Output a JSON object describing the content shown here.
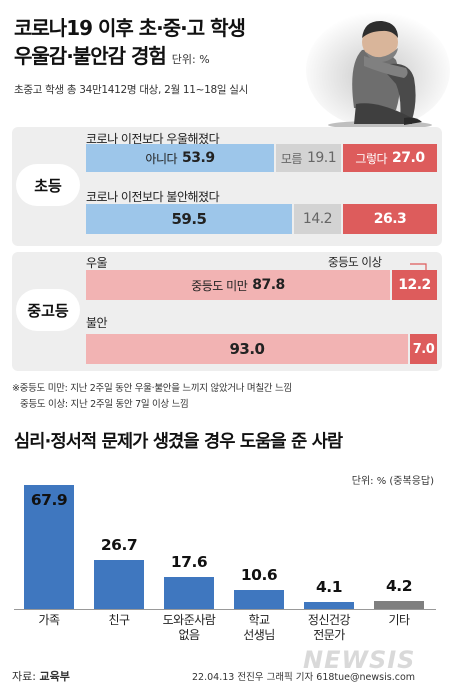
{
  "header": {
    "title_line1": "코로나19 이후 초·중·고 학생",
    "title_line2": "우울감·불안감 경험",
    "unit": "단위: %",
    "subline": "초중고 학생 총 34만1412명 대상, 2월 11~18일 실시"
  },
  "colors": {
    "blue_light": "#9dc6ea",
    "gray": "#d3d3d3",
    "red": "#dd5c5c",
    "pink": "#f2b3b3",
    "bar_blue": "#3f77bf",
    "bar_gray": "#7f7f7f"
  },
  "survey": {
    "elementary": {
      "label": "초등",
      "q1": {
        "question": "코로나 이전보다 우울해졌다",
        "no_label": "아니다",
        "no": "53.9",
        "unsure_label": "모름",
        "unsure": "19.1",
        "yes_label": "그렇다",
        "yes": "27.0"
      },
      "q2": {
        "question": "코로나 이전보다 불안해졌다",
        "no": "59.5",
        "unsure": "14.2",
        "yes": "26.3"
      }
    },
    "middle_high": {
      "label": "중고등",
      "q1": {
        "question": "우울",
        "low_label": "중등도 미만",
        "low": "87.8",
        "high_label": "중등도 이상",
        "high": "12.2"
      },
      "q2": {
        "question": "불안",
        "low": "93.0",
        "high": "7.0"
      }
    },
    "notes": [
      "※중등도 미만: 지난 2주일 동안 우울·불안을 느끼지 않았거나 며칠간 느낌",
      "중등도 이상: 지난 2주일 동안 7일 이상 느낌"
    ]
  },
  "section2": {
    "title": "심리·정서적 문제가 생겼을 경우 도움을 준 사람",
    "unit": "단위: % (중복응답)"
  },
  "chart_data": [
    {
      "type": "bar",
      "orientation": "horizontal-stacked",
      "title": "코로나19 이후 초·중·고 학생 우울감·불안감 경험",
      "series": [
        {
          "group": "초등",
          "name": "코로나 이전보다 우울해졌다",
          "segments": [
            {
              "label": "아니다",
              "value": 53.9
            },
            {
              "label": "모름",
              "value": 19.1
            },
            {
              "label": "그렇다",
              "value": 27.0
            }
          ]
        },
        {
          "group": "초등",
          "name": "코로나 이전보다 불안해졌다",
          "segments": [
            {
              "label": "아니다",
              "value": 59.5
            },
            {
              "label": "모름",
              "value": 14.2
            },
            {
              "label": "그렇다",
              "value": 26.3
            }
          ]
        },
        {
          "group": "중고등",
          "name": "우울",
          "segments": [
            {
              "label": "중등도 미만",
              "value": 87.8
            },
            {
              "label": "중등도 이상",
              "value": 12.2
            }
          ]
        },
        {
          "group": "중고등",
          "name": "불안",
          "segments": [
            {
              "label": "중등도 미만",
              "value": 93.0
            },
            {
              "label": "중등도 이상",
              "value": 7.0
            }
          ]
        }
      ]
    },
    {
      "type": "bar",
      "title": "심리·정서적 문제가 생겼을 경우 도움을 준 사람",
      "categories": [
        "가족",
        "친구",
        "도와준사람\n없음",
        "학교\n선생님",
        "정신건강\n전문가",
        "기타"
      ],
      "values": [
        67.9,
        26.7,
        17.6,
        10.6,
        4.1,
        4.2
      ],
      "value_labels": [
        "67.9",
        "26.7",
        "17.6",
        "10.6",
        "4.1",
        "4.2"
      ],
      "ylabel": "단위: % (중복응답)",
      "ylim": [
        0,
        70
      ]
    }
  ],
  "footer": {
    "source_prefix": "자료: ",
    "source": "교육부",
    "credit": "22.04.13 전진우 그래픽 기자 618tue@newsis.com",
    "watermark": "NEWSIS"
  }
}
